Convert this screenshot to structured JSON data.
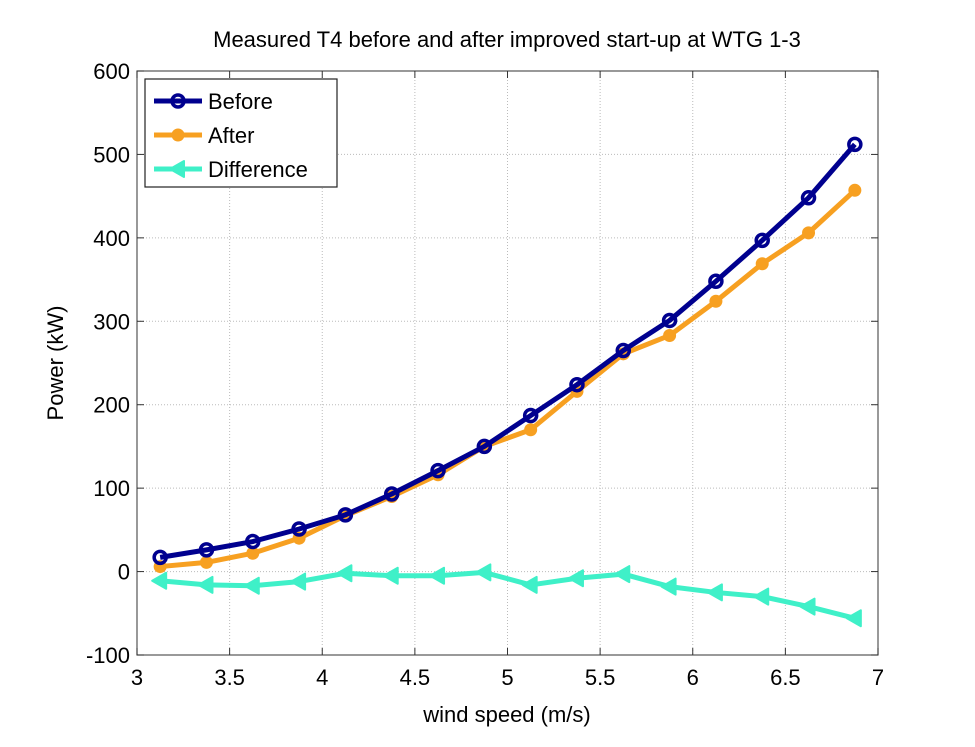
{
  "chart_data": {
    "type": "line",
    "title": "Measured T4 before and after improved start-up at WTG 1-3",
    "xlabel": "wind speed (m/s)",
    "ylabel": "Power (kW)",
    "xlim": [
      3,
      7
    ],
    "ylim": [
      -100,
      600
    ],
    "xticks": [
      "3",
      "3.5",
      "4",
      "4.5",
      "5",
      "5.5",
      "6",
      "6.5",
      "7"
    ],
    "yticks": [
      "-100",
      "0",
      "100",
      "200",
      "300",
      "400",
      "500",
      "600"
    ],
    "grid": true,
    "legend_position": "top-left",
    "x": [
      3.125,
      3.375,
      3.625,
      3.875,
      4.125,
      4.375,
      4.625,
      4.875,
      5.125,
      5.375,
      5.625,
      5.875,
      6.125,
      6.375,
      6.625,
      6.875
    ],
    "series": [
      {
        "name": "Before",
        "color": "#00008f",
        "marker": "circle-open",
        "values": [
          17,
          26,
          36,
          51,
          68,
          93,
          121,
          150,
          187,
          224,
          265,
          301,
          348,
          397,
          448,
          512
        ]
      },
      {
        "name": "After",
        "color": "#f7a021",
        "marker": "circle-filled",
        "values": [
          6,
          11,
          22,
          40,
          67,
          90,
          116,
          150,
          170,
          216,
          261,
          283,
          324,
          369,
          406,
          457
        ]
      },
      {
        "name": "Difference",
        "color": "#3ff0c8",
        "marker": "triangle-left",
        "values": [
          -11,
          -16,
          -17,
          -12,
          -2,
          -5,
          -5,
          -1,
          -16,
          -8,
          -3,
          -18,
          -25,
          -30,
          -42,
          -56
        ]
      }
    ]
  }
}
